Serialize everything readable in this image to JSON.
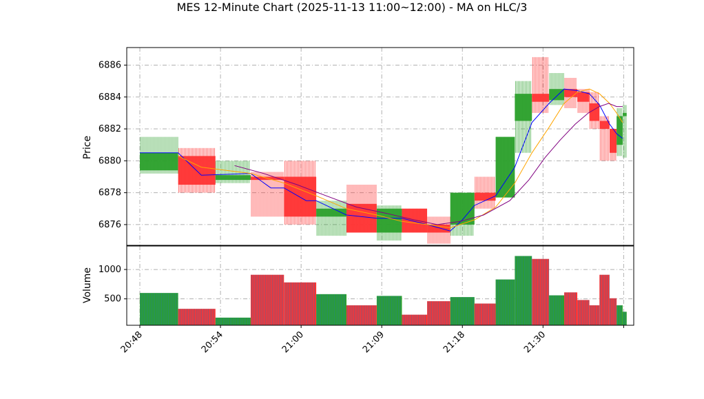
{
  "title": "MES 12-Minute Chart (2025-11-13 11:00~12:00) - MA on HLC/3",
  "chart_data": [
    {
      "type": "bar",
      "subtype": "ohlc-candlestick",
      "title": "MES 12-Minute Chart (2025-11-13 11:00~12:00) - MA on HLC/3",
      "ylabel": "Price",
      "ylim": [
        6874.7,
        6887.1
      ],
      "yticks": [
        6876,
        6878,
        6880,
        6882,
        6884,
        6886
      ],
      "xlim": [
        -1.3,
        49.0
      ],
      "xticks": [
        {
          "pos": 0,
          "label": "20:48"
        },
        {
          "pos": 8,
          "label": "20:54"
        },
        {
          "pos": 16,
          "label": "21:00"
        },
        {
          "pos": 24,
          "label": "21:09"
        },
        {
          "pos": 32,
          "label": "21:18"
        },
        {
          "pos": 40,
          "label": "21:30"
        },
        {
          "pos": 48,
          "label": ""
        }
      ],
      "grid": true,
      "colors": {
        "up": "#2ca02c",
        "down": "#ff3333",
        "ma_fast": "#0000ff",
        "ma_mid": "#ffa500",
        "ma_slow": "#800080"
      },
      "candles": [
        {
          "start": 0,
          "end": 3.8,
          "open": 6879.4,
          "high": 6881.5,
          "low": 6879.2,
          "close": 6880.5
        },
        {
          "start": 3.8,
          "end": 7.5,
          "open": 6880.3,
          "high": 6880.8,
          "low": 6878.0,
          "close": 6878.5
        },
        {
          "start": 7.5,
          "end": 11.0,
          "open": 6878.8,
          "high": 6880.0,
          "low": 6878.6,
          "close": 6879.1
        },
        {
          "start": 11.0,
          "end": 14.3,
          "open": 6879.0,
          "high": 6879.3,
          "low": 6876.5,
          "close": 6878.8
        },
        {
          "start": 14.3,
          "end": 17.5,
          "open": 6879.0,
          "high": 6880.0,
          "low": 6876.0,
          "close": 6876.5
        },
        {
          "start": 17.5,
          "end": 20.5,
          "open": 6876.5,
          "high": 6877.5,
          "low": 6875.3,
          "close": 6877.0
        },
        {
          "start": 20.5,
          "end": 23.5,
          "open": 6877.3,
          "high": 6878.5,
          "low": 6875.5,
          "close": 6875.5
        },
        {
          "start": 23.5,
          "end": 26.0,
          "open": 6875.5,
          "high": 6877.2,
          "low": 6875.0,
          "close": 6877.0
        },
        {
          "start": 26.0,
          "end": 28.5,
          "open": 6877.0,
          "high": 6877.0,
          "low": 6875.5,
          "close": 6875.5
        },
        {
          "start": 28.5,
          "end": 30.8,
          "open": 6876.0,
          "high": 6876.5,
          "low": 6874.8,
          "close": 6875.5
        },
        {
          "start": 30.8,
          "end": 33.2,
          "open": 6876.0,
          "high": 6878.0,
          "low": 6875.3,
          "close": 6878.0
        },
        {
          "start": 33.2,
          "end": 35.3,
          "open": 6878.0,
          "high": 6879.0,
          "low": 6877.0,
          "close": 6877.5
        },
        {
          "start": 35.3,
          "end": 37.2,
          "open": 6877.7,
          "high": 6881.5,
          "low": 6877.7,
          "close": 6881.5
        },
        {
          "start": 37.2,
          "end": 38.9,
          "open": 6882.5,
          "high": 6885.0,
          "low": 6880.5,
          "close": 6884.2
        },
        {
          "start": 38.9,
          "end": 40.6,
          "open": 6884.2,
          "high": 6886.5,
          "low": 6883.0,
          "close": 6883.7
        },
        {
          "start": 40.6,
          "end": 42.1,
          "open": 6883.8,
          "high": 6885.5,
          "low": 6883.5,
          "close": 6884.5
        },
        {
          "start": 42.1,
          "end": 43.4,
          "open": 6884.5,
          "high": 6885.2,
          "low": 6883.3,
          "close": 6884.0
        },
        {
          "start": 43.4,
          "end": 44.6,
          "open": 6884.3,
          "high": 6884.5,
          "low": 6883.0,
          "close": 6883.7
        },
        {
          "start": 44.6,
          "end": 45.6,
          "open": 6883.6,
          "high": 6884.3,
          "low": 6882.0,
          "close": 6882.5
        },
        {
          "start": 45.6,
          "end": 46.6,
          "open": 6882.5,
          "high": 6882.8,
          "low": 6880.0,
          "close": 6882.0
        },
        {
          "start": 46.6,
          "end": 47.3,
          "open": 6882.0,
          "high": 6882.0,
          "low": 6880.0,
          "close": 6880.5
        },
        {
          "start": 47.3,
          "end": 47.9,
          "open": 6881.0,
          "high": 6883.3,
          "low": 6880.3,
          "close": 6882.8
        },
        {
          "start": 47.9,
          "end": 48.3,
          "open": 6882.8,
          "high": 6883.5,
          "low": 6880.2,
          "close": 6883.0
        }
      ],
      "moving_averages": [
        {
          "color": "#0000ff",
          "points": [
            [
              0,
              6880.5
            ],
            [
              3.8,
              6880.5
            ],
            [
              6.1,
              6879.1
            ],
            [
              11.0,
              6879.2
            ],
            [
              13.0,
              6878.3
            ],
            [
              14.3,
              6878.3
            ],
            [
              16.5,
              6877.5
            ],
            [
              17.5,
              6877.5
            ],
            [
              20.5,
              6876.6
            ],
            [
              23.5,
              6876.4
            ],
            [
              26.0,
              6876.4
            ],
            [
              28.5,
              6876.0
            ],
            [
              30.8,
              6875.6
            ],
            [
              32.0,
              6876.3
            ],
            [
              33.2,
              6877.2
            ],
            [
              35.3,
              6877.8
            ],
            [
              37.2,
              6879.6
            ],
            [
              38.9,
              6882.4
            ],
            [
              40.6,
              6883.6
            ],
            [
              42.1,
              6884.5
            ],
            [
              43.4,
              6884.4
            ],
            [
              44.6,
              6884.2
            ],
            [
              45.6,
              6883.5
            ],
            [
              46.6,
              6882.3
            ],
            [
              47.3,
              6881.7
            ],
            [
              47.9,
              6881.4
            ]
          ]
        },
        {
          "color": "#ffa500",
          "points": [
            [
              3.8,
              6880.3
            ],
            [
              6.1,
              6879.6
            ],
            [
              11.0,
              6879.2
            ],
            [
              14.3,
              6878.6
            ],
            [
              17.5,
              6877.8
            ],
            [
              20.5,
              6877.0
            ],
            [
              23.5,
              6876.6
            ],
            [
              26.0,
              6876.2
            ],
            [
              28.5,
              6876.0
            ],
            [
              30.8,
              6875.8
            ],
            [
              33.2,
              6876.3
            ],
            [
              35.3,
              6877.1
            ],
            [
              37.2,
              6878.6
            ],
            [
              38.9,
              6880.5
            ],
            [
              40.6,
              6882.1
            ],
            [
              42.1,
              6883.6
            ],
            [
              43.4,
              6884.3
            ],
            [
              44.6,
              6884.5
            ],
            [
              45.6,
              6884.2
            ],
            [
              46.6,
              6883.6
            ],
            [
              47.3,
              6883.0
            ],
            [
              47.9,
              6882.4
            ]
          ]
        },
        {
          "color": "#800080",
          "points": [
            [
              9.4,
              6879.7
            ],
            [
              12.3,
              6879.2
            ],
            [
              15.6,
              6878.5
            ],
            [
              18.5,
              6877.8
            ],
            [
              21.5,
              6877.1
            ],
            [
              24.5,
              6876.7
            ],
            [
              27.2,
              6876.3
            ],
            [
              29.5,
              6876.0
            ],
            [
              31.8,
              6876.2
            ],
            [
              34.1,
              6876.6
            ],
            [
              36.7,
              6877.5
            ],
            [
              38.6,
              6878.8
            ],
            [
              40.2,
              6880.2
            ],
            [
              41.7,
              6881.3
            ],
            [
              43.2,
              6882.3
            ],
            [
              44.5,
              6883.0
            ],
            [
              45.6,
              6883.4
            ],
            [
              46.5,
              6883.6
            ],
            [
              47.3,
              6883.4
            ],
            [
              47.9,
              6883.4
            ]
          ]
        }
      ]
    },
    {
      "type": "bar",
      "ylabel": "Volume",
      "ylim": [
        50,
        1400
      ],
      "yticks": [
        500,
        1000
      ],
      "grid": true,
      "bars": [
        {
          "start": 0,
          "end": 3.8,
          "value": 600,
          "dir": "up"
        },
        {
          "start": 3.8,
          "end": 7.5,
          "value": 330,
          "dir": "down"
        },
        {
          "start": 7.5,
          "end": 11.0,
          "value": 180,
          "dir": "up"
        },
        {
          "start": 11.0,
          "end": 14.3,
          "value": 910,
          "dir": "down"
        },
        {
          "start": 14.3,
          "end": 17.5,
          "value": 780,
          "dir": "down"
        },
        {
          "start": 17.5,
          "end": 20.5,
          "value": 580,
          "dir": "up"
        },
        {
          "start": 20.5,
          "end": 23.5,
          "value": 390,
          "dir": "down"
        },
        {
          "start": 23.5,
          "end": 26.0,
          "value": 550,
          "dir": "up"
        },
        {
          "start": 26.0,
          "end": 28.5,
          "value": 230,
          "dir": "down"
        },
        {
          "start": 28.5,
          "end": 30.8,
          "value": 460,
          "dir": "down"
        },
        {
          "start": 30.8,
          "end": 33.2,
          "value": 530,
          "dir": "up"
        },
        {
          "start": 33.2,
          "end": 35.3,
          "value": 420,
          "dir": "down"
        },
        {
          "start": 35.3,
          "end": 37.2,
          "value": 830,
          "dir": "up"
        },
        {
          "start": 37.2,
          "end": 38.9,
          "value": 1230,
          "dir": "up"
        },
        {
          "start": 38.9,
          "end": 40.6,
          "value": 1180,
          "dir": "down"
        },
        {
          "start": 40.6,
          "end": 42.1,
          "value": 560,
          "dir": "up"
        },
        {
          "start": 42.1,
          "end": 43.4,
          "value": 610,
          "dir": "down"
        },
        {
          "start": 43.4,
          "end": 44.6,
          "value": 480,
          "dir": "down"
        },
        {
          "start": 44.6,
          "end": 45.6,
          "value": 390,
          "dir": "down"
        },
        {
          "start": 45.6,
          "end": 46.6,
          "value": 910,
          "dir": "down"
        },
        {
          "start": 46.6,
          "end": 47.3,
          "value": 510,
          "dir": "down"
        },
        {
          "start": 47.3,
          "end": 47.9,
          "value": 390,
          "dir": "up"
        },
        {
          "start": 47.9,
          "end": 48.3,
          "value": 280,
          "dir": "up"
        }
      ],
      "colors": {
        "up_fill": "#2ca02c",
        "down_fill": "#ff3333",
        "edge": "#1f77b4"
      }
    }
  ]
}
